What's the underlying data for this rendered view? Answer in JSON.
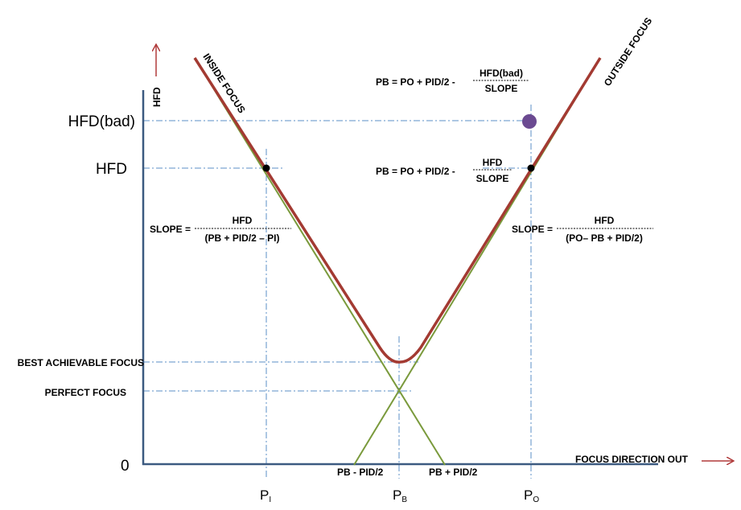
{
  "axis": {
    "y_title": "HFD",
    "x_title": "FOCUS DIRECTION OUT",
    "origin": "0",
    "hfd_bad": "HFD(bad)",
    "hfd": "HFD",
    "best_focus": "BEST ACHIEVABLE FOCUS",
    "perfect_focus": "PERFECT FOCUS",
    "pi": "P",
    "pi_sub": "I",
    "pb": "P",
    "pb_sub": "B",
    "po": "P",
    "po_sub": "O",
    "pb_minus": "PB - PID/2",
    "pb_plus": "PB + PID/2"
  },
  "labels": {
    "inside_focus": "INSIDE FOCUS",
    "outside_focus": "OUTSIDE FOCUS"
  },
  "formulas": {
    "pb_bad": {
      "prefix": "PB = PO + PID/2  -",
      "numerator": "HFD(bad)",
      "denominator": "SLOPE"
    },
    "pb": {
      "prefix": "PB = PO + PID/2  -",
      "numerator": "HFD",
      "denominator": "SLOPE"
    },
    "slope_left": {
      "prefix": "SLOPE =",
      "numerator": "HFD",
      "denominator": "(PB + PID/2 – PI)"
    },
    "slope_right": {
      "prefix": "SLOPE =",
      "numerator": "HFD",
      "denominator": "(PO– PB + PID/2)"
    }
  },
  "colors": {
    "curve": "#a33a32",
    "asymptote": "#7a9a3c",
    "axis": "#3c5a80",
    "guide": "#5b8fc7",
    "marker": "#6b4a91",
    "arrow": "#b03a3a"
  }
}
